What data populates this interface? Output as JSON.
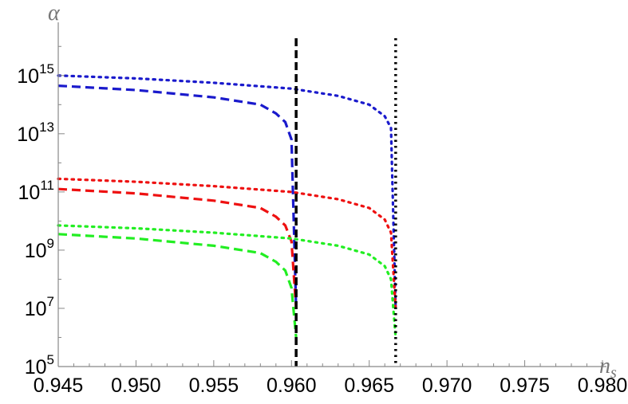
{
  "chart_data": {
    "type": "line",
    "title": "",
    "xlabel": "n",
    "xlabel_sub": "s",
    "ylabel": "α",
    "yscale": "log",
    "grid": false,
    "legend": "none",
    "xlim": [
      0.945,
      0.98
    ],
    "ylim_exp": [
      5,
      16.5
    ],
    "x_ticks": [
      "0.945",
      "0.950",
      "0.955",
      "0.960",
      "0.965",
      "0.970",
      "0.975",
      "0.980"
    ],
    "x_tick_values": [
      0.945,
      0.95,
      0.955,
      0.96,
      0.965,
      0.97,
      0.975,
      0.98
    ],
    "y_ticks": [
      {
        "exp": 5,
        "base": "10",
        "power": "5"
      },
      {
        "exp": 7,
        "base": "10",
        "power": "7"
      },
      {
        "exp": 9,
        "base": "10",
        "power": "9"
      },
      {
        "exp": 11,
        "base": "10",
        "power": "11"
      },
      {
        "exp": 13,
        "base": "10",
        "power": "13"
      },
      {
        "exp": 15,
        "base": "10",
        "power": "15"
      }
    ],
    "vertical_lines": [
      {
        "x": 0.9603,
        "style": "dashed",
        "color": "#000000"
      },
      {
        "x": 0.9667,
        "style": "dotted",
        "color": "#000000"
      }
    ],
    "series": [
      {
        "style": "dashed",
        "color": "#1a1acc",
        "x": [
          0.945,
          0.95,
          0.955,
          0.958,
          0.959,
          0.9596,
          0.96,
          0.9603
        ],
        "log10_y": [
          14.65,
          14.5,
          14.25,
          14.0,
          13.7,
          13.4,
          12.8,
          7.0
        ]
      },
      {
        "style": "dotted",
        "color": "#1a1acc",
        "x": [
          0.945,
          0.95,
          0.955,
          0.96,
          0.963,
          0.965,
          0.966,
          0.9664,
          0.9667
        ],
        "log10_y": [
          15.0,
          14.9,
          14.75,
          14.55,
          14.3,
          14.0,
          13.6,
          13.2,
          7.0
        ]
      },
      {
        "style": "dashed",
        "color": "#ee1111",
        "x": [
          0.945,
          0.95,
          0.955,
          0.958,
          0.959,
          0.9596,
          0.96,
          0.9603
        ],
        "log10_y": [
          11.1,
          10.95,
          10.7,
          10.45,
          10.15,
          9.85,
          9.3,
          7.0
        ]
      },
      {
        "style": "dotted",
        "color": "#ee1111",
        "x": [
          0.945,
          0.95,
          0.955,
          0.96,
          0.963,
          0.965,
          0.966,
          0.9664,
          0.9667
        ],
        "log10_y": [
          11.45,
          11.35,
          11.2,
          11.0,
          10.75,
          10.45,
          10.05,
          9.6,
          7.0
        ]
      },
      {
        "style": "dashed",
        "color": "#22ee22",
        "x": [
          0.945,
          0.95,
          0.955,
          0.958,
          0.959,
          0.9596,
          0.96,
          0.9603
        ],
        "log10_y": [
          9.55,
          9.4,
          9.15,
          8.9,
          8.6,
          8.3,
          7.7,
          6.0
        ]
      },
      {
        "style": "dotted",
        "color": "#22ee22",
        "x": [
          0.945,
          0.95,
          0.955,
          0.96,
          0.963,
          0.965,
          0.966,
          0.9664,
          0.9667
        ],
        "log10_y": [
          9.85,
          9.75,
          9.6,
          9.4,
          9.15,
          8.85,
          8.45,
          8.0,
          6.0
        ]
      }
    ]
  }
}
